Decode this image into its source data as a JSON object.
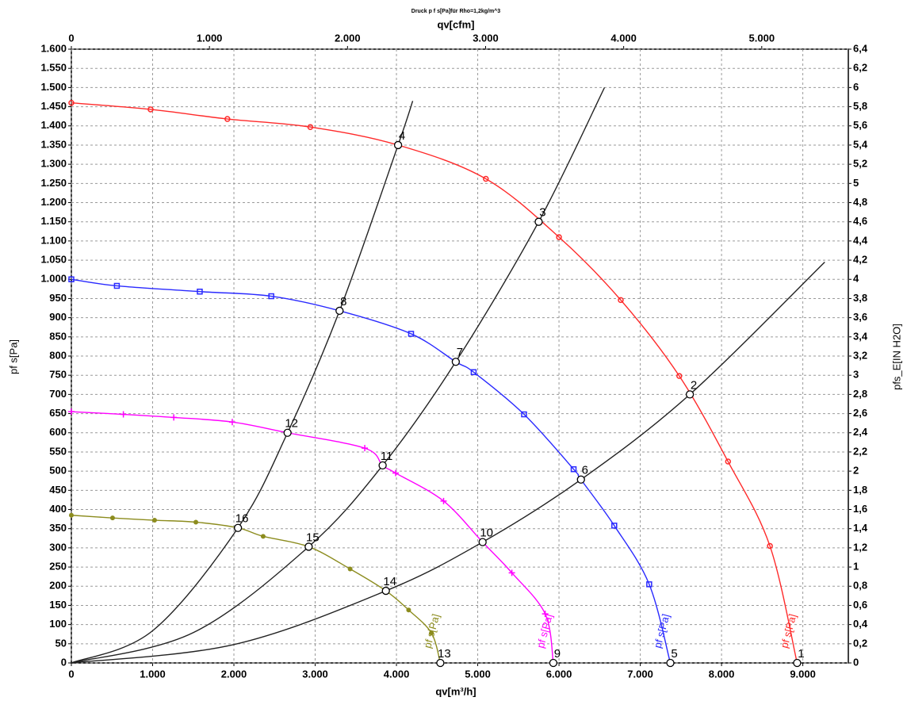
{
  "chart_data": {
    "type": "line",
    "title": "Druck p f s[Pa]für Rho=1,2kg/m^3",
    "x_label": "qv[m³/h]",
    "x2_label": "qv[cfm]",
    "y_label": "pf s[Pa]",
    "y2_label": "pfs_E[IN H2O]",
    "grid": true,
    "xlim": [
      0,
      9560
    ],
    "xticks": [
      0,
      {
        "value": 1000,
        "label": "1.000"
      },
      {
        "value": 2000,
        "label": "2.000"
      },
      {
        "value": 3000,
        "label": "3.000"
      },
      {
        "value": 4000,
        "label": "4.000"
      },
      {
        "value": 5000,
        "label": "5.000"
      },
      {
        "value": 6000,
        "label": "6.000"
      },
      {
        "value": 7000,
        "label": "7.000"
      },
      {
        "value": 8000,
        "label": "8.000"
      },
      {
        "value": 9000,
        "label": "9.000"
      }
    ],
    "x2lim": [
      0,
      5627
    ],
    "x2ticks": [
      0,
      {
        "value": 1000,
        "label": "1.000"
      },
      {
        "value": 2000,
        "label": "2.000"
      },
      {
        "value": 3000,
        "label": "3.000"
      },
      {
        "value": 4000,
        "label": "4.000"
      },
      {
        "value": 5000,
        "label": "5.000"
      }
    ],
    "ylim": [
      0,
      1600
    ],
    "yticks": [
      0,
      50,
      100,
      150,
      200,
      250,
      300,
      350,
      400,
      450,
      500,
      550,
      600,
      650,
      700,
      750,
      800,
      850,
      900,
      950,
      {
        "value": 1000,
        "label": "1.000"
      },
      {
        "value": 1050,
        "label": "1.050"
      },
      {
        "value": 1100,
        "label": "1.100"
      },
      {
        "value": 1150,
        "label": "1.150"
      },
      {
        "value": 1200,
        "label": "1.200"
      },
      {
        "value": 1250,
        "label": "1.250"
      },
      {
        "value": 1300,
        "label": "1.300"
      },
      {
        "value": 1350,
        "label": "1.350"
      },
      {
        "value": 1400,
        "label": "1.400"
      },
      {
        "value": 1450,
        "label": "1.450"
      },
      {
        "value": 1500,
        "label": "1.500"
      },
      {
        "value": 1550,
        "label": "1.550"
      },
      {
        "value": 1600,
        "label": "1.600"
      }
    ],
    "y2lim": [
      0,
      6.4
    ],
    "y2ticks": [
      0,
      {
        "value": 0.2,
        "label": "0,2"
      },
      {
        "value": 0.4,
        "label": "0,4"
      },
      {
        "value": 0.6,
        "label": "0,6"
      },
      {
        "value": 0.8,
        "label": "0,8"
      },
      1,
      {
        "value": 1.2,
        "label": "1,2"
      },
      {
        "value": 1.4,
        "label": "1,4"
      },
      {
        "value": 1.6,
        "label": "1,6"
      },
      {
        "value": 1.8,
        "label": "1,8"
      },
      2,
      {
        "value": 2.2,
        "label": "2,2"
      },
      {
        "value": 2.4,
        "label": "2,4"
      },
      {
        "value": 2.6,
        "label": "2,6"
      },
      {
        "value": 2.8,
        "label": "2,8"
      },
      3,
      {
        "value": 3.2,
        "label": "3,2"
      },
      {
        "value": 3.4,
        "label": "3,4"
      },
      {
        "value": 3.6,
        "label": "3,6"
      },
      {
        "value": 3.8,
        "label": "3,8"
      },
      4,
      {
        "value": 4.2,
        "label": "4,2"
      },
      {
        "value": 4.4,
        "label": "4,4"
      },
      {
        "value": 4.6,
        "label": "4,6"
      },
      {
        "value": 4.8,
        "label": "4,8"
      },
      5,
      {
        "value": 5.2,
        "label": "5,2"
      },
      {
        "value": 5.4,
        "label": "5,4"
      },
      {
        "value": 5.6,
        "label": "5,6"
      },
      {
        "value": 5.8,
        "label": "5,8"
      },
      6,
      {
        "value": 6.2,
        "label": "6,2"
      },
      {
        "value": 6.4,
        "label": "6,4"
      }
    ],
    "series": [
      {
        "name": "pf s[Pa]",
        "color": "#ff2a2a",
        "marker": "circle",
        "x": [
          0,
          975,
          1920,
          2940,
          4020,
          5100,
          6000,
          6760,
          7480,
          8080,
          8595,
          8930
        ],
        "values": [
          1460,
          1443,
          1418,
          1397,
          1350,
          1262,
          1110,
          946,
          748,
          525,
          305,
          0
        ]
      },
      {
        "name": "pf s[Pa]",
        "color": "#2a2aff",
        "marker": "square",
        "x": [
          0,
          560,
          1580,
          2460,
          3300,
          4180,
          4730,
          4950,
          5570,
          6180,
          6270,
          6680,
          7110,
          7370
        ],
        "values": [
          1000,
          983,
          968,
          956,
          918,
          858,
          785,
          758,
          648,
          505,
          478,
          358,
          205,
          0
        ]
      },
      {
        "name": "pf s[Pa]",
        "color": "#ff00ff",
        "marker": "plus",
        "x": [
          0,
          640,
          1260,
          1980,
          2660,
          3610,
          3830,
          3990,
          4580,
          5060,
          5420,
          5830,
          5930
        ],
        "values": [
          655,
          648,
          640,
          628,
          600,
          560,
          515,
          495,
          422,
          315,
          235,
          128,
          0
        ]
      },
      {
        "name": "pf s[Pa]",
        "color": "#8c8c1e",
        "marker": "dot",
        "x": [
          0,
          507,
          1024,
          1532,
          2050,
          2360,
          2920,
          3430,
          3870,
          4150,
          4430,
          4540
        ],
        "values": [
          385,
          378,
          372,
          367,
          352,
          330,
          303,
          245,
          188,
          138,
          78,
          0
        ]
      }
    ],
    "system_curves": [
      {
        "color": "#222222",
        "x": [
          0,
          1000,
          2050,
          2660,
          3300,
          4020,
          4200
        ],
        "values": [
          0,
          84,
          352,
          600,
          918,
          1350,
          1465
        ]
      },
      {
        "color": "#222222",
        "x": [
          0,
          1500,
          2920,
          3830,
          4730,
          5750,
          6560
        ],
        "values": [
          0,
          79,
          303,
          515,
          785,
          1150,
          1500
        ]
      },
      {
        "color": "#222222",
        "x": [
          0,
          2000,
          3870,
          5060,
          6270,
          7610,
          9270
        ],
        "values": [
          0,
          48,
          188,
          315,
          478,
          700,
          1045
        ]
      }
    ],
    "points": {
      "labels": [
        "1",
        "2",
        "3",
        "4",
        "5",
        "6",
        "7",
        "8",
        "9",
        "10",
        "11",
        "12",
        "13",
        "14",
        "15",
        "16"
      ],
      "x": [
        8930,
        7610,
        5750,
        4020,
        7370,
        6270,
        4730,
        3300,
        5930,
        5060,
        3830,
        2660,
        4540,
        3870,
        2920,
        2050
      ],
      "values": [
        0,
        700,
        1150,
        1350,
        0,
        478,
        785,
        918,
        0,
        315,
        515,
        600,
        0,
        188,
        303,
        352
      ]
    }
  }
}
